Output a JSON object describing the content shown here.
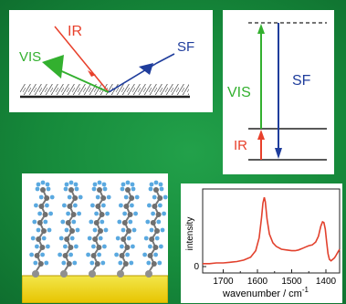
{
  "geometry": {
    "ir_label": "IR",
    "vis_label": "VIS",
    "sf_label": "SF",
    "colors": {
      "ir": "#e8402b",
      "vis": "#33b02f",
      "sf": "#1f3d9c"
    }
  },
  "energy": {
    "vis_label": "VIS",
    "sf_label": "SF",
    "ir_label": "IR"
  },
  "spectrum": {
    "ylabel": "intensity",
    "xlabel_main": "wavenumber / cm",
    "xlabel_sup": "-1",
    "y_zero_label": "0",
    "line_color": "#e2412d"
  },
  "chart_data": {
    "type": "line",
    "title": "",
    "xlabel": "wavenumber / cm-1",
    "ylabel": "intensity",
    "xlim": [
      1760,
      1360
    ],
    "x_ticks": [
      1700,
      1600,
      1500,
      1400
    ],
    "x_tick_labels": [
      "1700",
      "1600",
      "1500",
      "1400"
    ],
    "y_ticks": [
      0
    ],
    "y_tick_labels": [
      "0"
    ],
    "series": [
      {
        "x": [
          1760,
          1740,
          1720,
          1700,
          1680,
          1660,
          1640,
          1620,
          1605,
          1595,
          1588,
          1584,
          1580,
          1577,
          1572,
          1565,
          1555,
          1545,
          1530,
          1515,
          1500,
          1490,
          1480,
          1470,
          1460,
          1450,
          1440,
          1430,
          1422,
          1415,
          1410,
          1406,
          1402,
          1398,
          1394,
          1390,
          1385,
          1380,
          1375,
          1370,
          1365,
          1360
        ],
        "y": [
          0.04,
          0.04,
          0.05,
          0.05,
          0.06,
          0.07,
          0.09,
          0.13,
          0.22,
          0.4,
          0.68,
          0.88,
          0.96,
          0.9,
          0.66,
          0.45,
          0.33,
          0.28,
          0.24,
          0.23,
          0.22,
          0.22,
          0.23,
          0.25,
          0.27,
          0.29,
          0.3,
          0.34,
          0.42,
          0.56,
          0.62,
          0.61,
          0.52,
          0.34,
          0.18,
          0.1,
          0.08,
          0.1,
          0.12,
          0.16,
          0.2,
          0.24
        ]
      }
    ]
  }
}
